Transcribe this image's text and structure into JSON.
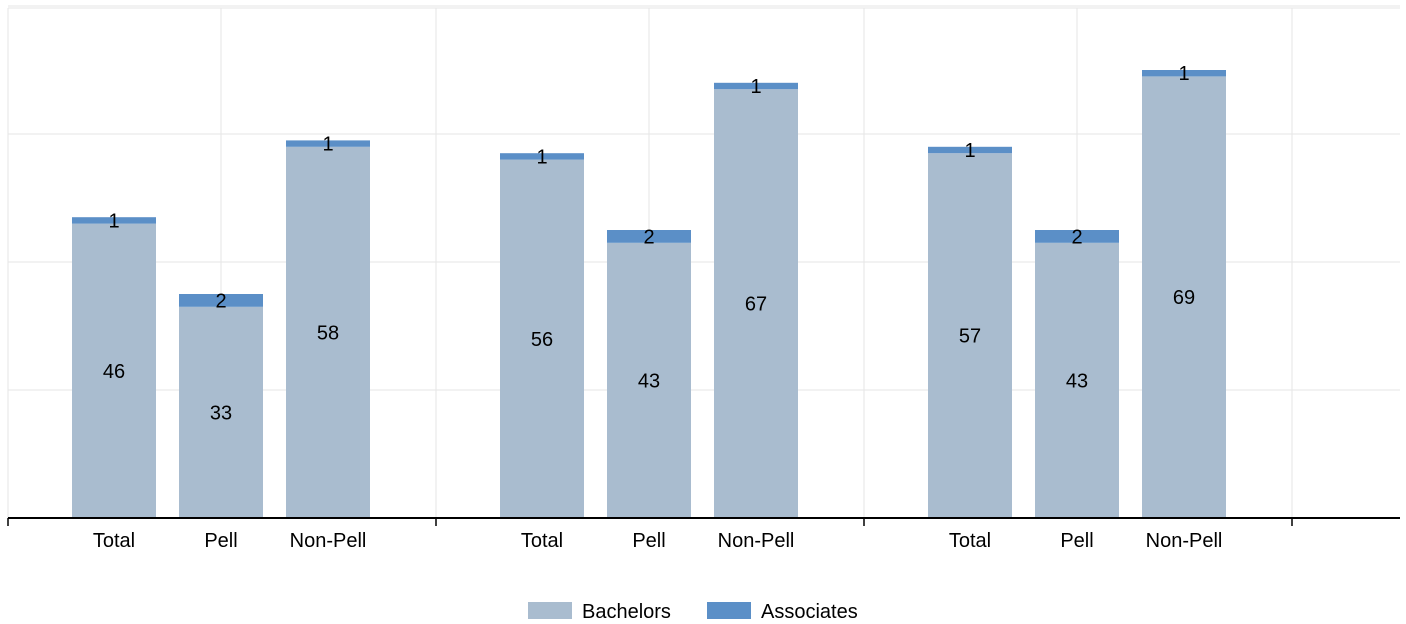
{
  "chart_data": {
    "type": "bar",
    "stacked": true,
    "grid": true,
    "legend_position": "bottom",
    "ylim": [
      0,
      80
    ],
    "groups": [
      {
        "categories": [
          "Total",
          "Pell",
          "Non-Pell"
        ]
      },
      {
        "categories": [
          "Total",
          "Pell",
          "Non-Pell"
        ]
      },
      {
        "categories": [
          "Total",
          "Pell",
          "Non-Pell"
        ]
      }
    ],
    "series": [
      {
        "name": "Bachelors",
        "color": "#a9bccf",
        "values": [
          [
            46,
            33,
            58
          ],
          [
            56,
            43,
            67
          ],
          [
            57,
            43,
            69
          ]
        ]
      },
      {
        "name": "Associates",
        "color": "#5b8fc7",
        "values": [
          [
            1,
            2,
            1
          ],
          [
            1,
            2,
            1
          ],
          [
            1,
            2,
            1
          ]
        ]
      }
    ]
  }
}
